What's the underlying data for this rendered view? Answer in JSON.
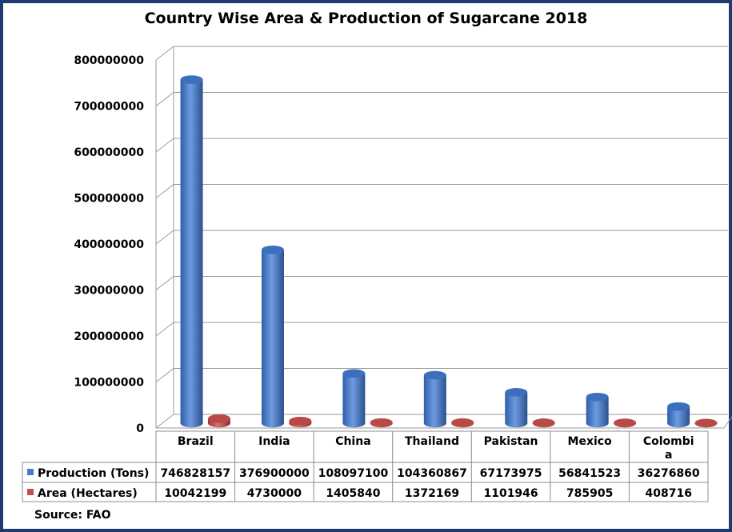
{
  "chart_data": {
    "type": "bar",
    "title": "Country Wise Area & Production of Sugarcane 2018",
    "categories": [
      "Brazil",
      "India",
      "China",
      "Thailand",
      "Pakistan",
      "Mexico",
      "Colombia"
    ],
    "category_display": [
      [
        "Brazil"
      ],
      [
        "India"
      ],
      [
        "China"
      ],
      [
        "Thailand"
      ],
      [
        "Pakistan"
      ],
      [
        "Mexico"
      ],
      [
        "Colombi",
        "a"
      ]
    ],
    "series": [
      {
        "name": "Production (Tons)",
        "color": "#4a7bc8",
        "values": [
          746828157,
          376900000,
          108097100,
          104360867,
          67173975,
          56841523,
          36276860
        ],
        "labels": [
          "746828157",
          "376900000",
          "108097100",
          "104360867",
          "67173975",
          "56841523",
          "36276860"
        ]
      },
      {
        "name": "Area (Hectares)",
        "color": "#c0504d",
        "values": [
          10042199,
          4730000,
          1405840,
          1372169,
          1101946,
          785905,
          408716
        ],
        "labels": [
          "10042199",
          "4730000",
          "1405840",
          "1372169",
          "1101946",
          "785905",
          "408716"
        ]
      }
    ],
    "ylim": [
      0,
      800000000
    ],
    "yticks": [
      "0",
      "100000000",
      "200000000",
      "300000000",
      "400000000",
      "500000000",
      "600000000",
      "700000000",
      "800000000"
    ],
    "grid": true,
    "legend": "data-table-bottom"
  },
  "source": "Source: FAO"
}
